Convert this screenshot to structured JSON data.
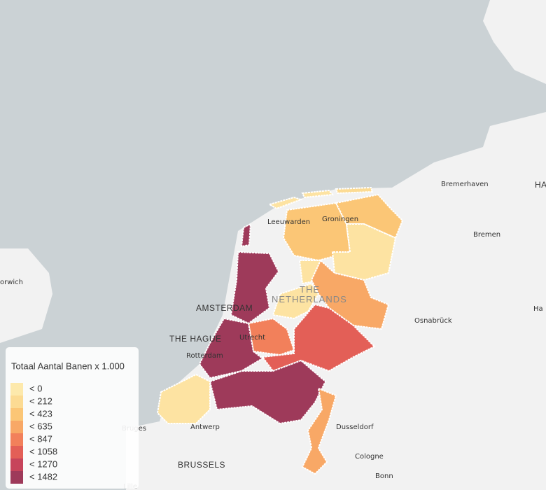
{
  "legend": {
    "title": "Totaal Aantal Banen x 1.000",
    "items": [
      {
        "label": "< 0",
        "color": "#fde9ac"
      },
      {
        "label": "< 212",
        "color": "#fcdb93"
      },
      {
        "label": "< 423",
        "color": "#fbc676"
      },
      {
        "label": "< 635",
        "color": "#f8a866"
      },
      {
        "label": "< 847",
        "color": "#f2805b"
      },
      {
        "label": "< 1058",
        "color": "#e35f57"
      },
      {
        "label": "< 1270",
        "color": "#c7445b"
      },
      {
        "label": "< 1482",
        "color": "#9e3a5a"
      }
    ]
  },
  "places": [
    {
      "label": "Bremerhaven"
    },
    {
      "label": "HA"
    },
    {
      "label": "Leeuwarden"
    },
    {
      "label": "Groningen"
    },
    {
      "label": "Bremen"
    },
    {
      "label": "THE"
    },
    {
      "label": "NETHERLANDS"
    },
    {
      "label": "orwich"
    },
    {
      "label": "AMSTERDAM"
    },
    {
      "label": "Ha"
    },
    {
      "label": "Osnabrück"
    },
    {
      "label": "THE HAGUE"
    },
    {
      "label": "Utrecht"
    },
    {
      "label": "Rotterdam"
    },
    {
      "label": "Bruges"
    },
    {
      "label": "Antwerp"
    },
    {
      "label": "Dusseldorf"
    },
    {
      "label": "Cologne"
    },
    {
      "label": "BRUSSELS"
    },
    {
      "label": "Bonn"
    },
    {
      "label": "Lille"
    }
  ]
}
